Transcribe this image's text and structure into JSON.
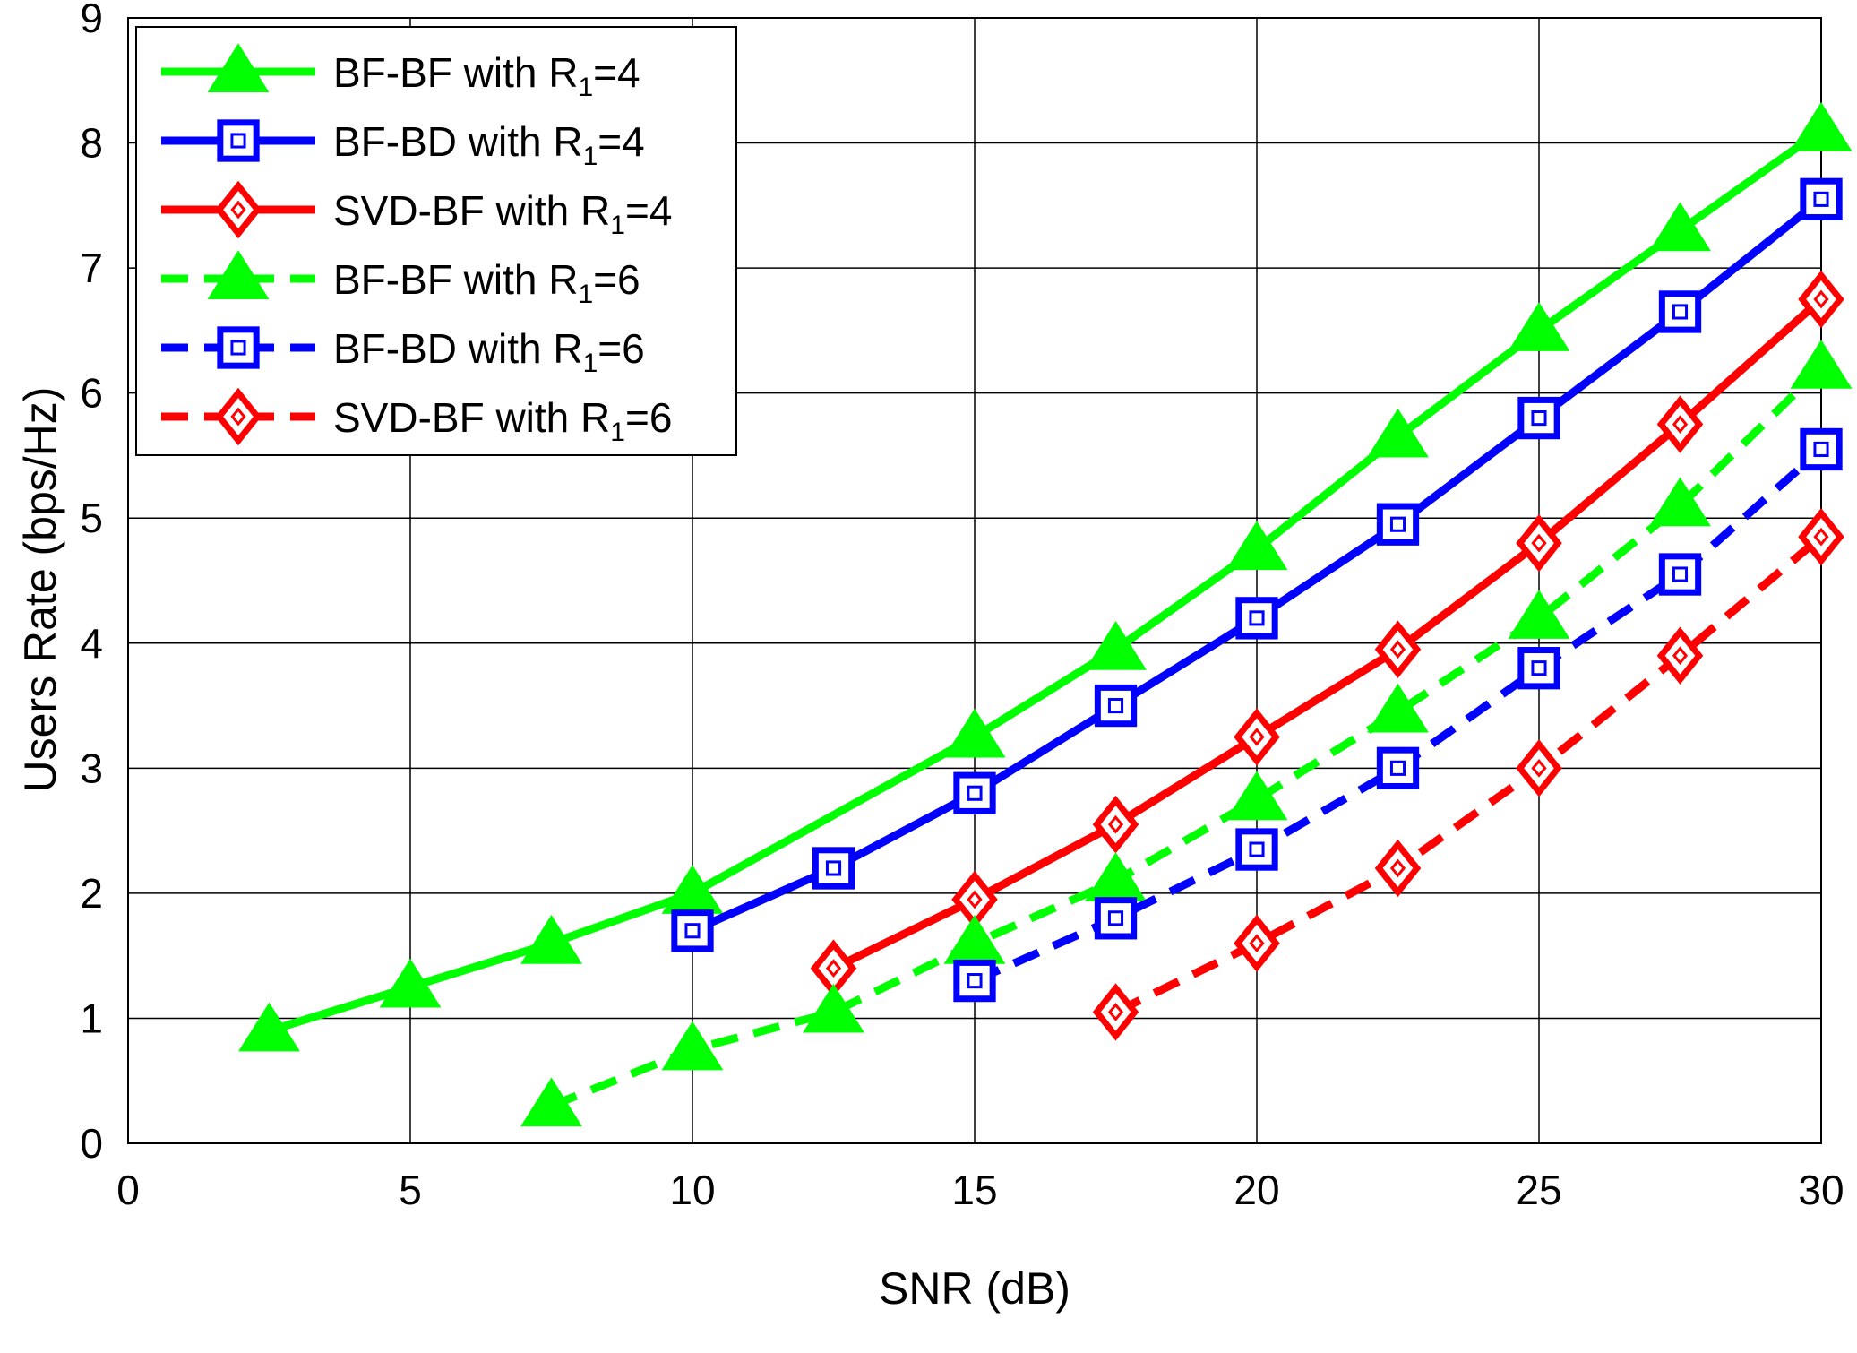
{
  "chart_data": {
    "type": "line",
    "title": "",
    "xlabel": "SNR (dB)",
    "ylabel": "Users Rate (bps/Hz)",
    "xlim": [
      0,
      30
    ],
    "ylim": [
      0,
      9
    ],
    "xticks": [
      0,
      5,
      10,
      15,
      20,
      25,
      30
    ],
    "yticks": [
      0,
      1,
      2,
      3,
      4,
      5,
      6,
      7,
      8,
      9
    ],
    "grid": true,
    "legend_position": "top-left",
    "series": [
      {
        "name": "BF-BF with R1=4",
        "legend_main": "BF-BF with R",
        "legend_sub": "1",
        "legend_tail": "=4",
        "color": "#00ff00",
        "linestyle": "solid",
        "marker": "triangle",
        "marker_filled": true,
        "x": [
          2.5,
          5,
          7.5,
          10,
          15,
          17.5,
          20,
          22.5,
          25,
          27.5,
          30
        ],
        "y": [
          0.9,
          1.25,
          1.6,
          2.0,
          3.25,
          3.95,
          4.75,
          5.65,
          6.5,
          7.3,
          8.1
        ]
      },
      {
        "name": "BF-BD with R1=4",
        "legend_main": "BF-BD with R",
        "legend_sub": "1",
        "legend_tail": "=4",
        "color": "#0000ff",
        "linestyle": "solid",
        "marker": "square",
        "marker_filled": false,
        "x": [
          10,
          12.5,
          15,
          17.5,
          20,
          22.5,
          25,
          27.5,
          30
        ],
        "y": [
          1.7,
          2.2,
          2.8,
          3.5,
          4.2,
          4.95,
          5.8,
          6.65,
          7.55
        ]
      },
      {
        "name": "SVD-BF with R1=4",
        "legend_main": "SVD-BF with R",
        "legend_sub": "1",
        "legend_tail": "=4",
        "color": "#ff0000",
        "linestyle": "solid",
        "marker": "diamond",
        "marker_filled": false,
        "x": [
          12.5,
          15,
          17.5,
          20,
          22.5,
          25,
          27.5,
          30
        ],
        "y": [
          1.4,
          1.95,
          2.55,
          3.25,
          3.95,
          4.8,
          5.75,
          6.75
        ]
      },
      {
        "name": "BF-BF with R1=6",
        "legend_main": "BF-BF with R",
        "legend_sub": "1",
        "legend_tail": "=6",
        "color": "#00ff00",
        "linestyle": "dashed",
        "marker": "triangle",
        "marker_filled": true,
        "x": [
          7.5,
          10,
          12.5,
          15,
          17.5,
          20,
          22.5,
          25,
          27.5,
          30
        ],
        "y": [
          0.3,
          0.75,
          1.05,
          1.6,
          2.1,
          2.75,
          3.45,
          4.2,
          5.1,
          6.2
        ]
      },
      {
        "name": "BF-BD with R1=6",
        "legend_main": "BF-BD with R",
        "legend_sub": "1",
        "legend_tail": "=6",
        "color": "#0000ff",
        "linestyle": "dashed",
        "marker": "square",
        "marker_filled": false,
        "x": [
          15,
          17.5,
          20,
          22.5,
          25,
          27.5,
          30
        ],
        "y": [
          1.3,
          1.8,
          2.35,
          3.0,
          3.8,
          4.55,
          5.55
        ]
      },
      {
        "name": "SVD-BF with R1=6",
        "legend_main": "SVD-BF with R",
        "legend_sub": "1",
        "legend_tail": "=6",
        "color": "#ff0000",
        "linestyle": "dashed",
        "marker": "diamond",
        "marker_filled": false,
        "x": [
          17.5,
          20,
          22.5,
          25,
          27.5,
          30
        ],
        "y": [
          1.05,
          1.6,
          2.2,
          3.0,
          3.9,
          4.85
        ]
      }
    ]
  }
}
